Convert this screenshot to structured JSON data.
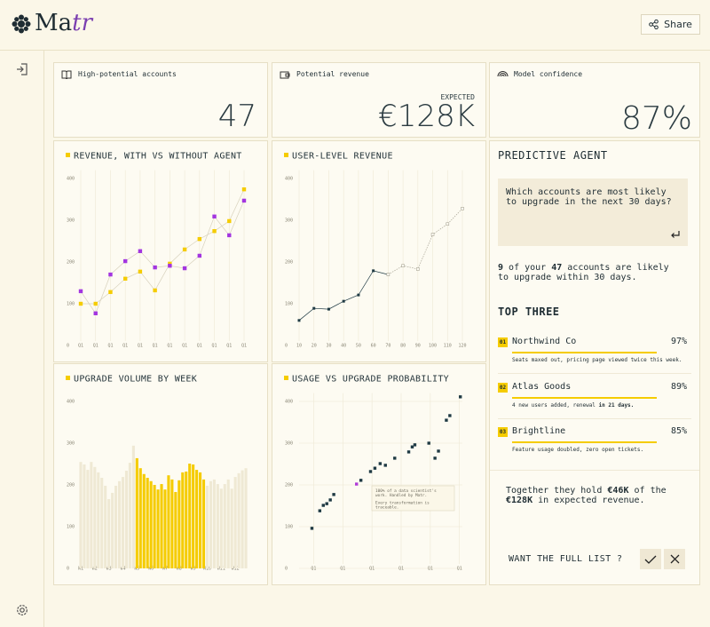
{
  "header": {
    "logo": [
      "Ma",
      "tr"
    ],
    "share": "Share"
  },
  "kpis": [
    {
      "label": "High-potential accounts",
      "value": "47"
    },
    {
      "label": "Potential revenue",
      "caption": "EXPECTED",
      "value": "€128K"
    },
    {
      "label": "Model confidence",
      "value": "87%"
    }
  ],
  "chart_data": [
    {
      "type": "line",
      "title": "REVENUE, WITH VS WITHOUT AGENT",
      "accent": "#f5cc00",
      "grid": "x",
      "line_color": "#d8d2bd",
      "categories": [
        "Q1",
        "Q1",
        "Q1",
        "Q1",
        "Q1",
        "Q1",
        "Q1",
        "Q1",
        "Q1",
        "Q1",
        "Q1",
        "Q1"
      ],
      "series": [
        {
          "color": "#f5cc00",
          "values": [
            100,
            100,
            128,
            160,
            177,
            132,
            196,
            230,
            255,
            274,
            298,
            374
          ]
        },
        {
          "color": "#a335e0",
          "values": [
            130,
            77,
            170,
            202,
            226,
            187,
            191,
            185,
            215,
            309,
            264,
            347
          ]
        }
      ],
      "ylim": [
        0,
        420
      ],
      "yticks": [
        0,
        100,
        200,
        300,
        400
      ]
    },
    {
      "type": "line",
      "title": "USER-LEVEL REVENUE",
      "accent": "#f5cc00",
      "grid": "x",
      "x": [
        10,
        20,
        30,
        40,
        50,
        60,
        70,
        80,
        90,
        100,
        110,
        120
      ],
      "series": [
        {
          "color": "#1f3a44",
          "values": [
            60,
            89,
            87,
            106,
            121,
            179,
            170,
            null,
            null,
            null,
            null,
            null
          ]
        },
        {
          "color": "#a9a596",
          "dashed": true,
          "hollow": true,
          "values": [
            null,
            null,
            null,
            null,
            null,
            null,
            170,
            191,
            183,
            266,
            291,
            328
          ]
        }
      ],
      "xlim": [
        10,
        120
      ],
      "xticks": [
        10,
        20,
        30,
        40,
        50,
        60,
        70,
        80,
        90,
        100,
        110,
        120
      ],
      "ylim": [
        0,
        420
      ],
      "yticks": [
        0,
        100,
        200,
        300,
        400
      ]
    },
    {
      "type": "bar",
      "title": "UPGRADE VOLUME BY WEEK",
      "accent": "#f5cc00",
      "grid": false,
      "categories": [
        "W1",
        null,
        null,
        null,
        "W2",
        null,
        null,
        null,
        "W3",
        null,
        null,
        null,
        "W4",
        null,
        null,
        null,
        "W5",
        null,
        null,
        null,
        "W6",
        null,
        null,
        null,
        "W7",
        null,
        null,
        null,
        "W8",
        null,
        null,
        null,
        "W9",
        null,
        null,
        null,
        "W10",
        null,
        null,
        null,
        "W11",
        null,
        null,
        null,
        "W12",
        null,
        null,
        null
      ],
      "series": [
        {
          "color": "#efe9d4",
          "values": [
            255,
            249,
            236,
            255,
            243,
            230,
            217,
            198,
            166,
            181,
            198,
            209,
            219,
            234,
            253,
            294,
            null,
            null,
            null,
            null,
            null,
            null,
            null,
            null,
            null,
            null,
            null,
            null,
            null,
            null,
            null,
            null,
            null,
            null,
            null,
            null,
            198,
            209,
            213,
            202,
            191,
            202,
            213,
            191,
            219,
            228,
            235,
            240
          ]
        },
        {
          "color": "#f5cc00",
          "values": [
            null,
            null,
            null,
            null,
            null,
            null,
            null,
            null,
            null,
            null,
            null,
            null,
            null,
            null,
            null,
            null,
            264,
            240,
            226,
            217,
            209,
            200,
            189,
            202,
            189,
            223,
            213,
            183,
            211,
            230,
            232,
            251,
            249,
            236,
            230,
            213,
            null,
            null,
            null,
            null,
            null,
            null,
            null,
            null,
            null,
            null,
            null,
            null
          ]
        }
      ],
      "ylim": [
        0,
        420
      ],
      "yticks": [
        0,
        100,
        200,
        300,
        400
      ]
    },
    {
      "type": "scatter",
      "title": "USAGE VS UPGRADE PROBABILITY",
      "accent": "#f5cc00",
      "grid": "both",
      "x": [
        0.94,
        1.21,
        1.33,
        1.45,
        1.57,
        1.69,
        2.47,
        2.62,
        2.95,
        3.1,
        3.28,
        3.46,
        3.78,
        4.26,
        4.38,
        4.47,
        4.95,
        5.16,
        5.28,
        5.55,
        5.67,
        6.03
      ],
      "series": [
        {
          "color": "#1f3a44",
          "values": [
            96,
            138,
            151,
            155,
            164,
            177,
            null,
            211,
            232,
            240,
            251,
            247,
            264,
            279,
            291,
            296,
            300,
            264,
            281,
            355,
            366,
            411
          ]
        },
        {
          "color": "#b03ad8",
          "values": [
            null,
            null,
            null,
            null,
            null,
            null,
            202,
            null,
            null,
            null,
            null,
            null,
            null,
            null,
            null,
            null,
            null,
            null,
            null,
            null,
            null,
            null
          ]
        }
      ],
      "xlim": [
        0.5,
        6.1
      ],
      "xticks": [
        {
          "value": 1,
          "label": "Q1"
        },
        {
          "value": 2,
          "label": "Q1"
        },
        {
          "value": 3,
          "label": "Q1"
        },
        {
          "value": 4,
          "label": "Q1"
        },
        {
          "value": 5,
          "label": "Q1"
        },
        {
          "value": 6,
          "label": "Q1"
        }
      ],
      "ylim": [
        0,
        420
      ],
      "yticks": [
        0,
        100,
        200,
        300,
        400
      ],
      "annotation": [
        "100% of a data scientist's",
        "work. Handled by Matr.",
        "Every transformation is",
        "traceable."
      ]
    }
  ],
  "agent": {
    "title": "PREDICTIVE AGENT",
    "prompt": "Which accounts are most likely to upgrade in the next 30 days?",
    "answer": [
      "9",
      " of your ",
      "47",
      " accounts are likely to upgrade within 30 days."
    ],
    "list_title": "TOP THREE",
    "items": [
      {
        "rank": "01",
        "name": "Northwind Co",
        "score": "97%",
        "note": [
          "Seats maxed out, pricing page viewed twice this week."
        ]
      },
      {
        "rank": "02",
        "name": "Atlas Goods",
        "score": "89%",
        "note": [
          "4 new users added, renewal ",
          "in 21 days."
        ]
      },
      {
        "rank": "03",
        "name": "Brightline",
        "score": "85%",
        "note": [
          "Feature usage doubled, zero open tickets."
        ]
      }
    ],
    "summary": [
      "Together they hold ",
      "€46K",
      " of the ",
      "€128K",
      " in expected revenue."
    ],
    "cta": "WANT THE FULL LIST ?"
  }
}
